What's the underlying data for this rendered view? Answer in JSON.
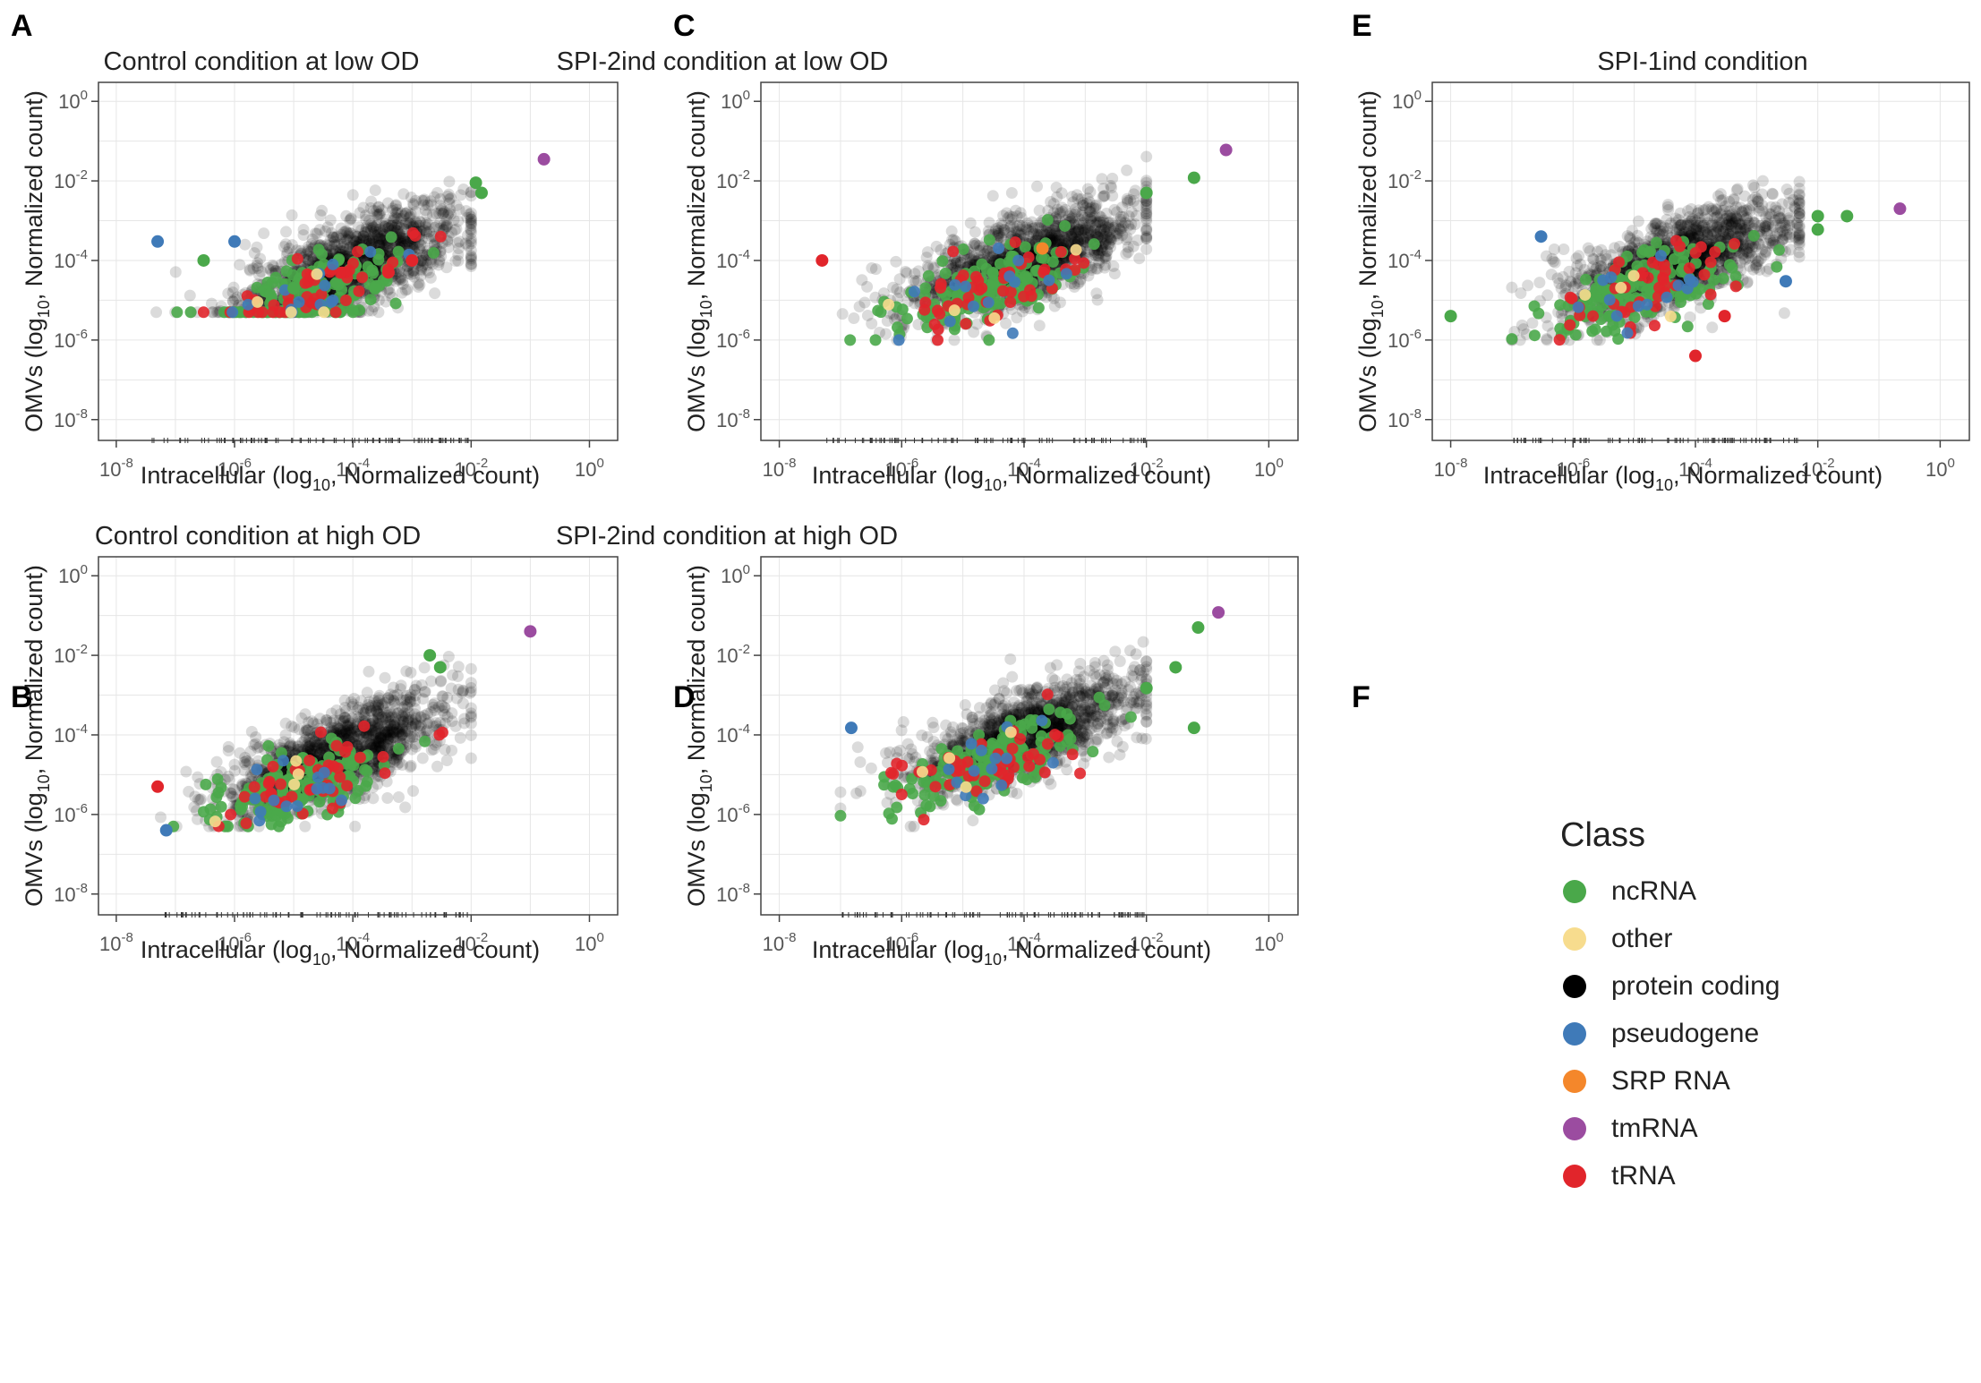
{
  "panels": [
    {
      "letter": "A"
    },
    {
      "letter": "B"
    },
    {
      "letter": "C"
    },
    {
      "letter": "D"
    },
    {
      "letter": "E"
    },
    {
      "letter": "F"
    }
  ],
  "legend": {
    "title": "Class",
    "items": [
      {
        "label": "ncRNA",
        "color": "#4aa84a"
      },
      {
        "label": "other",
        "color": "#f7dc8e"
      },
      {
        "label": "protein coding",
        "color": "#000000"
      },
      {
        "label": "pseudogene",
        "color": "#3f7ab8"
      },
      {
        "label": "SRP RNA",
        "color": "#f4872b"
      },
      {
        "label": "tmRNA",
        "color": "#9b4ca0"
      },
      {
        "label": "tRNA",
        "color": "#e1252b"
      }
    ]
  },
  "chart_data": [
    {
      "type": "scatter",
      "panel": "A",
      "title": "Control condition at low OD",
      "xlabel": "Intracellular (log10, Normalized count)",
      "ylabel": "OMVs (log10, Normalized count)",
      "xscale": "log",
      "yscale": "log",
      "xlim": [
        5e-09,
        3
      ],
      "ylim": [
        3e-09,
        3
      ],
      "xticks": [
        "10-8",
        "10-6",
        "10-4",
        "10-2",
        "100"
      ],
      "yticks": [
        "10-8",
        "10-6",
        "10-4",
        "10-2",
        "100"
      ],
      "grid": true,
      "cloud": {
        "center": [
          0.0001,
          8e-05
        ],
        "x_range": [
          3e-08,
          0.01
        ],
        "floor": 5e-06
      },
      "series": [
        {
          "name": "tmRNA",
          "points": [
            [
              0.17,
              0.035
            ]
          ]
        },
        {
          "name": "ncRNA",
          "points": [
            [
              0.012,
              0.009
            ],
            [
              0.015,
              0.005
            ],
            [
              1e-05,
              2e-05
            ],
            [
              3e-07,
              0.0001
            ]
          ]
        },
        {
          "name": "tRNA",
          "points": [
            [
              0.001,
              0.0001
            ],
            [
              0.0004,
              5e-05
            ]
          ]
        },
        {
          "name": "pseudogene",
          "points": [
            [
              5e-08,
              0.0003
            ],
            [
              1e-06,
              0.0003
            ]
          ]
        }
      ]
    },
    {
      "type": "scatter",
      "panel": "B",
      "title": "Control condition at high OD",
      "xlabel": "Intracellular (log10, Normalized count)",
      "ylabel": "OMVs (log10, Normalized count)",
      "xscale": "log",
      "yscale": "log",
      "xlim": [
        5e-09,
        3
      ],
      "ylim": [
        3e-09,
        3
      ],
      "xticks": [
        "10-8",
        "10-6",
        "10-4",
        "10-2",
        "100"
      ],
      "yticks": [
        "10-8",
        "10-6",
        "10-4",
        "10-2",
        "100"
      ],
      "grid": true,
      "cloud": {
        "center": [
          5e-05,
          3e-05
        ],
        "x_range": [
          5e-08,
          0.01
        ],
        "floor": 5e-07
      },
      "series": [
        {
          "name": "tmRNA",
          "points": [
            [
              0.1,
              0.04
            ]
          ]
        },
        {
          "name": "ncRNA",
          "points": [
            [
              0.002,
              0.01
            ],
            [
              0.003,
              0.005
            ]
          ]
        },
        {
          "name": "pseudogene",
          "points": [
            [
              7e-08,
              4e-07
            ]
          ]
        },
        {
          "name": "tRNA",
          "points": [
            [
              5e-08,
              5e-06
            ]
          ]
        }
      ]
    },
    {
      "type": "scatter",
      "panel": "C",
      "title": "SPI-2ind condition at low OD",
      "xlabel": "Intracellular (log10, Normalized count)",
      "ylabel": "OMVs (log10, Normalized count)",
      "xscale": "log",
      "yscale": "log",
      "xlim": [
        5e-09,
        3
      ],
      "ylim": [
        3e-09,
        3
      ],
      "xticks": [
        "10-8",
        "10-6",
        "10-4",
        "10-2",
        "100"
      ],
      "yticks": [
        "10-8",
        "10-6",
        "10-4",
        "10-2",
        "100"
      ],
      "grid": true,
      "cloud": {
        "center": [
          0.0001,
          0.0001
        ],
        "x_range": [
          3e-08,
          0.01
        ],
        "floor": 1e-06
      },
      "series": [
        {
          "name": "tmRNA",
          "points": [
            [
              0.2,
              0.06
            ]
          ]
        },
        {
          "name": "ncRNA",
          "points": [
            [
              0.06,
              0.012
            ],
            [
              0.01,
              0.005
            ]
          ]
        },
        {
          "name": "SRP RNA",
          "points": [
            [
              0.0002,
              0.0002
            ]
          ]
        },
        {
          "name": "tRNA",
          "points": [
            [
              5e-08,
              0.0001
            ]
          ]
        }
      ]
    },
    {
      "type": "scatter",
      "panel": "D",
      "title": "SPI-2ind condition at high OD",
      "xlabel": "Intracellular (log10, Normalized count)",
      "ylabel": "OMVs (log10, Normalized count)",
      "xscale": "log",
      "yscale": "log",
      "xlim": [
        5e-09,
        3
      ],
      "ylim": [
        3e-09,
        3
      ],
      "xticks": [
        "10-8",
        "10-6",
        "10-4",
        "10-2",
        "100"
      ],
      "yticks": [
        "10-8",
        "10-6",
        "10-4",
        "10-2",
        "100"
      ],
      "grid": true,
      "cloud": {
        "center": [
          0.0001,
          0.0001
        ],
        "x_range": [
          1e-07,
          0.01
        ],
        "floor": 5e-07
      },
      "series": [
        {
          "name": "tmRNA",
          "points": [
            [
              0.15,
              0.12
            ]
          ]
        },
        {
          "name": "ncRNA",
          "points": [
            [
              0.07,
              0.05
            ],
            [
              0.03,
              0.005
            ],
            [
              0.01,
              0.0015
            ],
            [
              0.06,
              0.00015
            ]
          ]
        },
        {
          "name": "pseudogene",
          "points": [
            [
              1.5e-07,
              0.00015
            ]
          ]
        }
      ]
    },
    {
      "type": "scatter",
      "panel": "E",
      "title": "SPI-1ind condition",
      "xlabel": "Intracellular (log10, Normalized count)",
      "ylabel": "OMVs (log10, Normalized count)",
      "xscale": "log",
      "yscale": "log",
      "xlim": [
        5e-09,
        3
      ],
      "ylim": [
        3e-09,
        3
      ],
      "xticks": [
        "10-8",
        "10-6",
        "10-4",
        "10-2",
        "100"
      ],
      "yticks": [
        "10-8",
        "10-6",
        "10-4",
        "10-2",
        "100"
      ],
      "grid": true,
      "cloud": {
        "center": [
          5e-05,
          0.0001
        ],
        "x_range": [
          1e-07,
          0.005
        ],
        "floor": 1e-06
      },
      "series": [
        {
          "name": "tmRNA",
          "points": [
            [
              0.22,
              0.002
            ]
          ]
        },
        {
          "name": "ncRNA",
          "points": [
            [
              0.03,
              0.0013
            ],
            [
              0.01,
              0.0013
            ],
            [
              0.01,
              0.0006
            ],
            [
              1e-08,
              4e-06
            ]
          ]
        },
        {
          "name": "tRNA",
          "points": [
            [
              0.0001,
              4e-07
            ],
            [
              0.0003,
              4e-06
            ]
          ]
        },
        {
          "name": "pseudogene",
          "points": [
            [
              3e-07,
              0.0004
            ],
            [
              0.003,
              3e-05
            ]
          ]
        }
      ]
    }
  ]
}
